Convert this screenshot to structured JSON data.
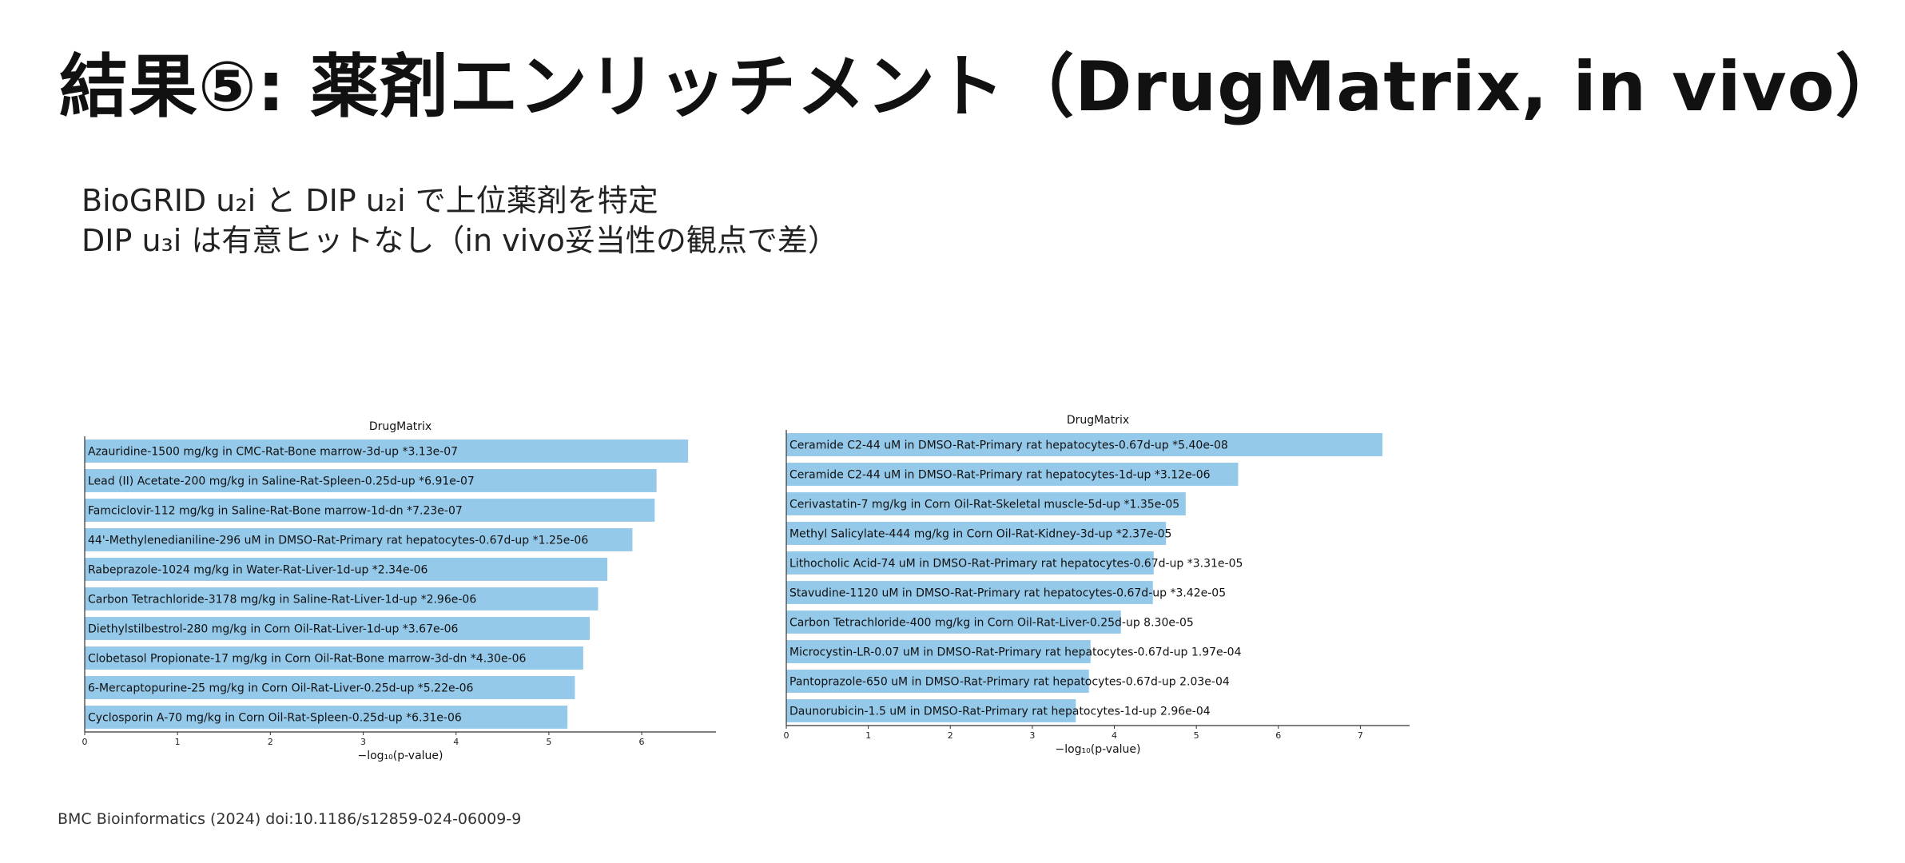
{
  "slide": {
    "title": "結果⑤: 薬剤エンリッチメント（DrugMatrix, in vivo）",
    "bullets": [
      "BioGRID u₂i と DIP u₂i で上位薬剤を特定",
      "DIP u₃i は有意ヒットなし（in vivo妥当性の観点で差）"
    ],
    "citation": "BMC Bioinformatics (2024) doi:10.1186/s12859-024-06009-9"
  },
  "colors": {
    "bar": "#95c9ea",
    "axis": "#333333"
  },
  "chart_data": [
    {
      "type": "bar",
      "orientation": "horizontal",
      "title": "DrugMatrix",
      "xlabel": "−log₁₀(p-value)",
      "xlim": [
        0,
        6.8
      ],
      "xticks": [
        0,
        1,
        2,
        3,
        4,
        5,
        6
      ],
      "grid": false,
      "categories": [
        "Azauridine-1500 mg/kg in CMC-Rat-Bone marrow-3d-up  *3.13e-07",
        "Lead (II) Acetate-200 mg/kg in Saline-Rat-Spleen-0.25d-up  *6.91e-07",
        "Famciclovir-112 mg/kg in Saline-Rat-Bone marrow-1d-dn  *7.23e-07",
        "44'-Methylenedianiline-296 uM in DMSO-Rat-Primary rat hepatocytes-0.67d-up  *1.25e-06",
        "Rabeprazole-1024 mg/kg in Water-Rat-Liver-1d-up  *2.34e-06",
        "Carbon Tetrachloride-3178 mg/kg in Saline-Rat-Liver-1d-up  *2.96e-06",
        "Diethylstilbestrol-280 mg/kg in Corn Oil-Rat-Liver-1d-up  *3.67e-06",
        "Clobetasol Propionate-17 mg/kg in Corn Oil-Rat-Bone marrow-3d-dn  *4.30e-06",
        "6-Mercaptopurine-25 mg/kg in Corn Oil-Rat-Liver-0.25d-up  *5.22e-06",
        "Cyclosporin A-70 mg/kg in Corn Oil-Rat-Spleen-0.25d-up  *6.31e-06"
      ],
      "values": [
        6.5,
        6.16,
        6.14,
        5.9,
        5.63,
        5.53,
        5.44,
        5.37,
        5.28,
        5.2
      ]
    },
    {
      "type": "bar",
      "orientation": "horizontal",
      "title": "DrugMatrix",
      "xlabel": "−log₁₀(p-value)",
      "xlim": [
        0,
        7.6
      ],
      "xticks": [
        0,
        1,
        2,
        3,
        4,
        5,
        6,
        7
      ],
      "grid": false,
      "categories": [
        "Ceramide C2-44 uM in DMSO-Rat-Primary rat hepatocytes-0.67d-up  *5.40e-08",
        "Ceramide C2-44 uM in DMSO-Rat-Primary rat hepatocytes-1d-up  *3.12e-06",
        "Cerivastatin-7 mg/kg in Corn Oil-Rat-Skeletal muscle-5d-up  *1.35e-05",
        "Methyl Salicylate-444 mg/kg in Corn Oil-Rat-Kidney-3d-up  *2.37e-05",
        "Lithocholic Acid-74 uM in DMSO-Rat-Primary rat hepatocytes-0.67d-up  *3.31e-05",
        "Stavudine-1120 uM in DMSO-Rat-Primary rat hepatocytes-0.67d-up  *3.42e-05",
        "Carbon Tetrachloride-400 mg/kg in Corn Oil-Rat-Liver-0.25d-up  8.30e-05",
        "Microcystin-LR-0.07 uM in DMSO-Rat-Primary rat hepatocytes-0.67d-up  1.97e-04",
        "Pantoprazole-650 uM in DMSO-Rat-Primary rat hepatocytes-0.67d-up  2.03e-04",
        "Daunorubicin-1.5 uM in DMSO-Rat-Primary rat hepatocytes-1d-up  2.96e-04"
      ],
      "values": [
        7.27,
        5.51,
        4.87,
        4.63,
        4.48,
        4.47,
        4.08,
        3.71,
        3.69,
        3.53
      ]
    }
  ]
}
